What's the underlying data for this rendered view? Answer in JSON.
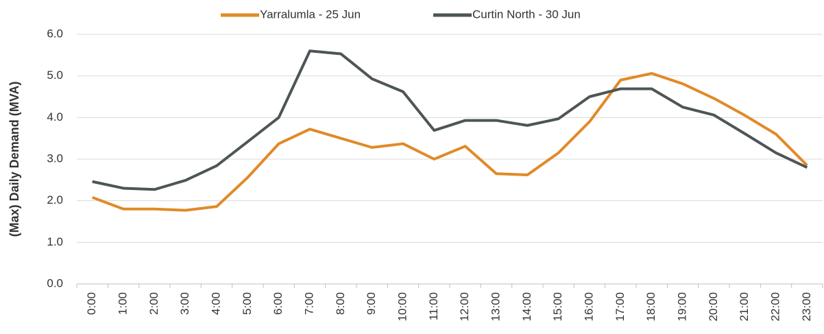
{
  "chart_data": {
    "type": "line",
    "y_axis_label": "(Max) Daily Demand (MVA)",
    "categories": [
      "0:00",
      "1:00",
      "2:00",
      "3:00",
      "4:00",
      "5:00",
      "6:00",
      "7:00",
      "8:00",
      "9:00",
      "10:00",
      "11:00",
      "12:00",
      "13:00",
      "14:00",
      "15:00",
      "16:00",
      "17:00",
      "18:00",
      "19:00",
      "20:00",
      "21:00",
      "22:00",
      "23:00"
    ],
    "series": [
      {
        "name": "Yarralumla - 25 Jun",
        "color": "#e08a28",
        "values": [
          2.08,
          1.8,
          1.8,
          1.77,
          1.86,
          2.56,
          3.37,
          3.72,
          3.5,
          3.28,
          3.37,
          3.0,
          3.31,
          2.65,
          2.62,
          3.15,
          3.9,
          4.9,
          5.06,
          4.81,
          4.46,
          4.05,
          3.6,
          2.85
        ]
      },
      {
        "name": "Curtin North - 30 Jun",
        "color": "#4d5557",
        "values": [
          2.46,
          2.3,
          2.27,
          2.49,
          2.84,
          3.42,
          4.0,
          5.6,
          5.53,
          4.93,
          4.62,
          3.69,
          3.93,
          3.93,
          3.81,
          3.97,
          4.5,
          4.69,
          4.69,
          4.25,
          4.06,
          3.61,
          3.15,
          2.8
        ]
      }
    ],
    "ylim": [
      0,
      6
    ],
    "yticks": [
      {
        "value": 0,
        "label": "0.0"
      },
      {
        "value": 1,
        "label": "1.0"
      },
      {
        "value": 2,
        "label": "2.0"
      },
      {
        "value": 3,
        "label": "3.0"
      },
      {
        "value": 4,
        "label": "4.0"
      },
      {
        "value": 5,
        "label": "5.0"
      },
      {
        "value": 6,
        "label": "6.0"
      }
    ],
    "grid": true,
    "legend": "top"
  }
}
